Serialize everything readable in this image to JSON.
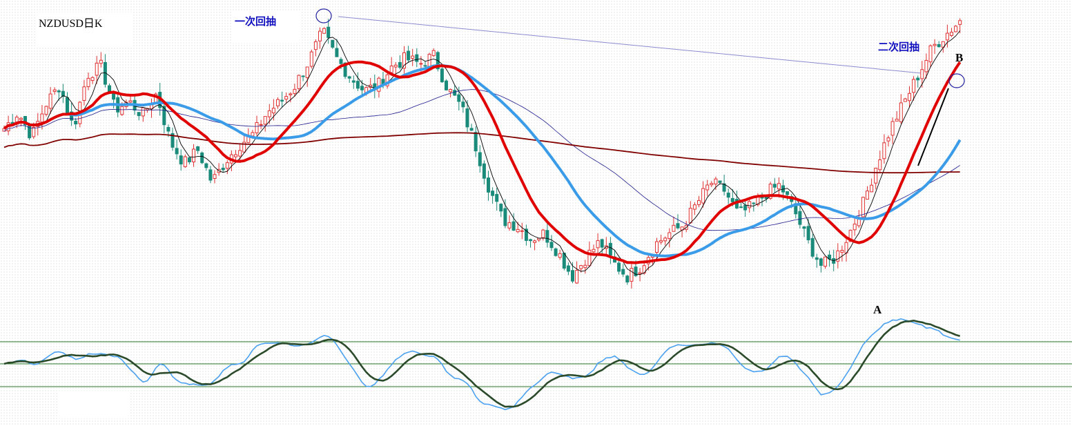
{
  "chart_data": [
    {
      "type": "candlestick",
      "title": "NZDUSD日K",
      "annotations": {
        "first_pullback": "一次回抽",
        "second_pullback": "二次回抽",
        "point_a": "A",
        "point_b": "B"
      },
      "colors": {
        "up_candle": "#e03030",
        "down_candle": "#1a8a7a",
        "ma_red": "#e00000",
        "ma_blue": "#3a9be8",
        "ma_darkred": "#800000",
        "ma_navy": "#1a1a8c",
        "ma_black_fast": "#000000",
        "annotation_text": "#1010c0"
      },
      "moving_averages": [
        {
          "color": "red",
          "style": "thick"
        },
        {
          "color": "blue",
          "style": "thick"
        },
        {
          "color": "darkred",
          "style": "medium"
        },
        {
          "color": "navy",
          "style": "thin"
        },
        {
          "color": "black",
          "style": "thin"
        }
      ],
      "close_profile": [
        0.6,
        0.66,
        0.57,
        0.69,
        0.76,
        0.6,
        0.8,
        0.83,
        0.67,
        0.7,
        0.65,
        0.73,
        0.55,
        0.47,
        0.52,
        0.4,
        0.48,
        0.54,
        0.58,
        0.66,
        0.7,
        0.76,
        0.85,
        0.96,
        0.86,
        0.79,
        0.74,
        0.76,
        0.83,
        0.86,
        0.84,
        0.87,
        0.75,
        0.68,
        0.54,
        0.38,
        0.26,
        0.24,
        0.19,
        0.21,
        0.14,
        0.05,
        0.12,
        0.18,
        0.1,
        0.05,
        0.09,
        0.17,
        0.21,
        0.24,
        0.32,
        0.4,
        0.37,
        0.28,
        0.31,
        0.36,
        0.39,
        0.3,
        0.18,
        0.09,
        0.12,
        0.21,
        0.32,
        0.47,
        0.6,
        0.7,
        0.8,
        0.9,
        0.95,
        1.0
      ]
    },
    {
      "type": "line",
      "panel": "oscillator",
      "series": [
        {
          "color": "#4aa0f0"
        },
        {
          "color": "#2a4a2a"
        }
      ],
      "levels": 3
    }
  ]
}
